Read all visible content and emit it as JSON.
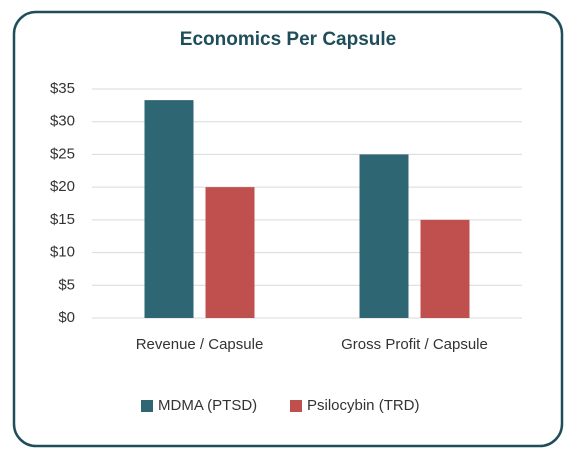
{
  "chart_data": {
    "type": "bar",
    "title": "Economics Per Capsule",
    "categories": [
      "Revenue / Capsule",
      "Gross Profit / Capsule"
    ],
    "series": [
      {
        "name": "MDMA (PTSD)",
        "color": "#2e6674",
        "values": [
          33.3,
          25
        ]
      },
      {
        "name": "Psilocybin (TRD)",
        "color": "#c0504d",
        "values": [
          20,
          15
        ]
      }
    ],
    "ylim": [
      0,
      35
    ],
    "yticks": [
      {
        "value": 0,
        "label": "$0"
      },
      {
        "value": 5,
        "label": "$5"
      },
      {
        "value": 10,
        "label": "$10"
      },
      {
        "value": 15,
        "label": "$15"
      },
      {
        "value": 20,
        "label": "$20"
      },
      {
        "value": 25,
        "label": "$25"
      },
      {
        "value": 30,
        "label": "$30"
      },
      {
        "value": 35,
        "label": "$35"
      }
    ],
    "grid": true,
    "legend": "bottom"
  }
}
